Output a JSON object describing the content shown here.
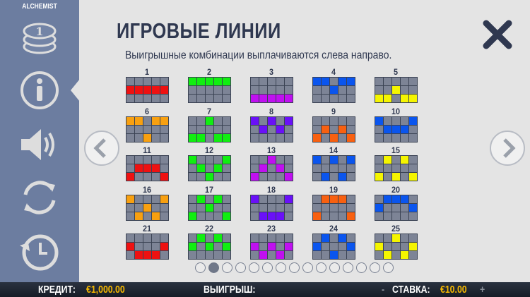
{
  "brand": "ALCHEMIST",
  "sidebar": {
    "items": [
      {
        "icon": "coins-icon"
      },
      {
        "icon": "info-icon",
        "active": true
      },
      {
        "icon": "sound-icon"
      },
      {
        "icon": "autoplay-icon"
      },
      {
        "icon": "history-icon"
      }
    ]
  },
  "title": "ИГРОВЫЕ ЛИНИИ",
  "subtitle": "Выигрышные комбинации выплачиваются слева направо.",
  "colors": {
    "red": "#ee1111",
    "green": "#11ee11",
    "magenta": "#c010f0",
    "blue": "#0a55ee",
    "yellow": "#f5f500",
    "orange": "#f8a010",
    "violet": "#6a10f8",
    "darkorange": "#f86010"
  },
  "paylines": [
    {
      "num": "1",
      "color": "#ee1111",
      "rows": [
        1,
        1,
        1,
        1,
        1
      ]
    },
    {
      "num": "2",
      "color": "#11ee11",
      "rows": [
        0,
        0,
        0,
        0,
        0
      ]
    },
    {
      "num": "3",
      "color": "#c010f0",
      "rows": [
        2,
        2,
        2,
        2,
        2
      ]
    },
    {
      "num": "4",
      "color": "#0a55ee",
      "rows": [
        0,
        0,
        1,
        0,
        0
      ]
    },
    {
      "num": "5",
      "color": "#f5f500",
      "rows": [
        2,
        2,
        1,
        2,
        2
      ]
    },
    {
      "num": "6",
      "color": "#f8a010",
      "rows": [
        0,
        0,
        2,
        0,
        0
      ]
    },
    {
      "num": "7",
      "color": "#11ee11",
      "rows": [
        2,
        2,
        0,
        2,
        2
      ]
    },
    {
      "num": "8",
      "color": "#6a10f8",
      "rows": [
        0,
        1,
        0,
        1,
        0
      ]
    },
    {
      "num": "9",
      "color": "#f86010",
      "rows": [
        2,
        1,
        2,
        1,
        2
      ]
    },
    {
      "num": "10",
      "color": "#0a55ee",
      "rows": [
        0,
        1,
        1,
        1,
        0
      ]
    },
    {
      "num": "11",
      "color": "#ee1111",
      "rows": [
        2,
        1,
        1,
        1,
        2
      ]
    },
    {
      "num": "12",
      "color": "#11ee11",
      "rows": [
        0,
        1,
        2,
        1,
        0
      ]
    },
    {
      "num": "13",
      "color": "#c010f0",
      "rows": [
        2,
        1,
        0,
        1,
        2
      ]
    },
    {
      "num": "14",
      "color": "#0a55ee",
      "rows": [
        0,
        2,
        0,
        2,
        0
      ]
    },
    {
      "num": "15",
      "color": "#f5f500",
      "rows": [
        2,
        0,
        2,
        0,
        2
      ]
    },
    {
      "num": "16",
      "color": "#f8a010",
      "rows": [
        0,
        2,
        1,
        2,
        0
      ]
    },
    {
      "num": "17",
      "color": "#11ee11",
      "rows": [
        2,
        0,
        1,
        0,
        2
      ]
    },
    {
      "num": "18",
      "color": "#6a10f8",
      "rows": [
        0,
        2,
        2,
        2,
        0
      ]
    },
    {
      "num": "19",
      "color": "#f86010",
      "rows": [
        2,
        0,
        0,
        0,
        2
      ]
    },
    {
      "num": "20",
      "color": "#0a55ee",
      "rows": [
        1,
        0,
        0,
        0,
        1
      ]
    },
    {
      "num": "21",
      "color": "#ee1111",
      "rows": [
        1,
        2,
        2,
        2,
        1
      ]
    },
    {
      "num": "22",
      "color": "#11ee11",
      "rows": [
        1,
        0,
        1,
        0,
        1
      ]
    },
    {
      "num": "23",
      "color": "#c010f0",
      "rows": [
        1,
        2,
        1,
        2,
        1
      ]
    },
    {
      "num": "24",
      "color": "#0a55ee",
      "rows": [
        1,
        0,
        2,
        0,
        1
      ]
    },
    {
      "num": "25",
      "color": "#f5f500",
      "rows": [
        1,
        2,
        0,
        2,
        1
      ]
    }
  ],
  "pagination": {
    "total": 15,
    "current": 2
  },
  "footer": {
    "credit_label": "КРЕДИТ:",
    "credit_value": "€1,000.00",
    "win_label": "ВЫИГРЫШ:",
    "minus": "-",
    "bet_label": "СТАВКА:",
    "bet_value": "€10.00",
    "plus": "+"
  }
}
